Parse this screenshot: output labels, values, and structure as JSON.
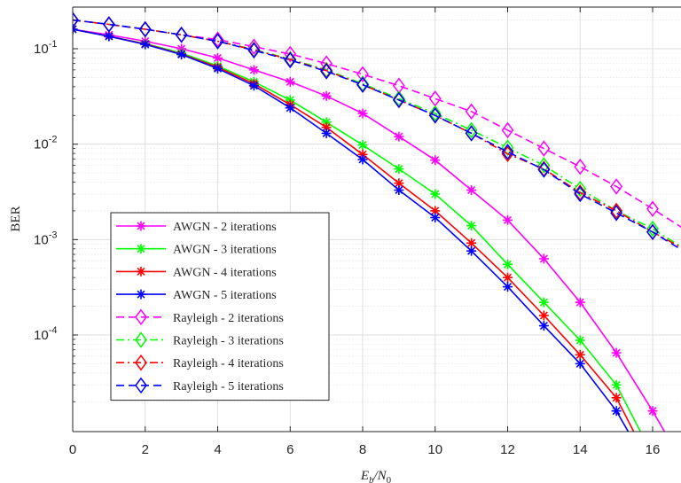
{
  "chart_data": {
    "type": "line",
    "xlabel": "E_b/N_0",
    "xlabel_main": "E",
    "xlabel_sub1": "b",
    "xlabel_mid": "/N",
    "xlabel_sub2": "0",
    "ylabel": "BER",
    "xlim": [
      0,
      17
    ],
    "ylim": [
      1e-05,
      0.2
    ],
    "y_scale": "log",
    "grid": true,
    "minor_grid": true,
    "legend_position": "bottom-left",
    "x_ticks": [
      0,
      2,
      4,
      6,
      8,
      10,
      12,
      14,
      16
    ],
    "x_tick_labels": [
      "0",
      "2",
      "4",
      "6",
      "8",
      "10",
      "12",
      "14",
      "16"
    ],
    "y_ticks": [
      {
        "value": 0.1,
        "base": "10",
        "exp": "-1"
      },
      {
        "value": 0.01,
        "base": "10",
        "exp": "-2"
      },
      {
        "value": 0.001,
        "base": "10",
        "exp": "-3"
      },
      {
        "value": 0.0001,
        "base": "10",
        "exp": "-4"
      }
    ],
    "series": [
      {
        "name": "AWGN - 2 iterations",
        "color": "#ff00ff",
        "dash": "solid",
        "marker": "star",
        "x": [
          0,
          1,
          2,
          3,
          4,
          5,
          6,
          7,
          8,
          9,
          10,
          11,
          12,
          13,
          14,
          15,
          16,
          17
        ],
        "y": [
          0.16,
          0.14,
          0.12,
          0.1,
          0.08,
          0.06,
          0.045,
          0.032,
          0.021,
          0.012,
          0.0068,
          0.0033,
          0.0016,
          0.00063,
          0.00022,
          6.5e-05,
          1.6e-05,
          3.5e-06
        ]
      },
      {
        "name": "AWGN - 3 iterations",
        "color": "#00ff00",
        "dash": "solid",
        "marker": "star",
        "x": [
          0,
          1,
          2,
          3,
          4,
          5,
          6,
          7,
          8,
          9,
          10,
          11,
          12,
          13,
          14,
          15,
          16
        ],
        "y": [
          0.16,
          0.135,
          0.113,
          0.09,
          0.066,
          0.045,
          0.029,
          0.017,
          0.0098,
          0.0055,
          0.003,
          0.0014,
          0.00055,
          0.00022,
          8.8e-05,
          3e-05,
          5.5e-06
        ]
      },
      {
        "name": "AWGN - 4 iterations",
        "color": "#ff0000",
        "dash": "solid",
        "marker": "star",
        "x": [
          0,
          1,
          2,
          3,
          4,
          5,
          6,
          7,
          8,
          9,
          10,
          11,
          12,
          13,
          14,
          15,
          16
        ],
        "y": [
          0.16,
          0.135,
          0.112,
          0.088,
          0.064,
          0.043,
          0.026,
          0.015,
          0.0078,
          0.0039,
          0.002,
          0.00092,
          0.0004,
          0.00016,
          6.2e-05,
          2.2e-05,
          4e-06
        ]
      },
      {
        "name": "AWGN - 5 iterations",
        "color": "#0000ff",
        "dash": "solid",
        "marker": "star",
        "x": [
          0,
          1,
          2,
          3,
          4,
          5,
          6,
          7,
          8,
          9,
          10,
          11,
          12,
          13,
          14,
          15,
          16
        ],
        "y": [
          0.16,
          0.135,
          0.111,
          0.087,
          0.062,
          0.041,
          0.024,
          0.013,
          0.0069,
          0.0033,
          0.0017,
          0.00076,
          0.00032,
          0.000125,
          5e-05,
          1.6e-05,
          3.5e-06
        ]
      },
      {
        "name": "Rayleigh - 2 iterations",
        "color": "#ff00ff",
        "dash": "dashed",
        "marker": "diamond",
        "x": [
          0,
          1,
          2,
          3,
          4,
          5,
          6,
          7,
          8,
          9,
          10,
          11,
          12,
          13,
          14,
          15,
          16,
          17
        ],
        "y": [
          0.2,
          0.18,
          0.16,
          0.14,
          0.125,
          0.105,
          0.088,
          0.07,
          0.054,
          0.041,
          0.03,
          0.022,
          0.014,
          0.009,
          0.0058,
          0.0036,
          0.0021,
          0.0012
        ]
      },
      {
        "name": "Rayleigh - 3 iterations",
        "color": "#00ff00",
        "dash": "dashdot",
        "marker": "diamond",
        "x": [
          0,
          1,
          2,
          3,
          4,
          5,
          6,
          7,
          8,
          9,
          10,
          11,
          12,
          13,
          14,
          15,
          16,
          17
        ],
        "y": [
          0.2,
          0.18,
          0.16,
          0.14,
          0.12,
          0.098,
          0.078,
          0.06,
          0.043,
          0.03,
          0.021,
          0.014,
          0.0092,
          0.006,
          0.0034,
          0.002,
          0.0013,
          0.00075
        ]
      },
      {
        "name": "Rayleigh - 4 iterations",
        "color": "#ff0000",
        "dash": "dashdot",
        "marker": "diamond",
        "x": [
          0,
          1,
          2,
          3,
          4,
          5,
          6,
          7,
          8,
          9,
          10,
          11,
          12,
          13,
          14,
          15,
          16,
          17
        ],
        "y": [
          0.2,
          0.18,
          0.16,
          0.14,
          0.12,
          0.097,
          0.077,
          0.059,
          0.042,
          0.029,
          0.02,
          0.013,
          0.0079,
          0.0055,
          0.0031,
          0.002,
          0.0012,
          0.00075
        ]
      },
      {
        "name": "Rayleigh - 5 iterations",
        "color": "#0000ff",
        "dash": "dashed",
        "marker": "diamond",
        "x": [
          0,
          1,
          2,
          3,
          4,
          5,
          6,
          7,
          8,
          9,
          10,
          11,
          12,
          13,
          14,
          15,
          16,
          17
        ],
        "y": [
          0.2,
          0.18,
          0.16,
          0.14,
          0.12,
          0.096,
          0.076,
          0.058,
          0.042,
          0.029,
          0.02,
          0.013,
          0.0083,
          0.0054,
          0.003,
          0.0019,
          0.0012,
          0.0007
        ]
      }
    ]
  }
}
